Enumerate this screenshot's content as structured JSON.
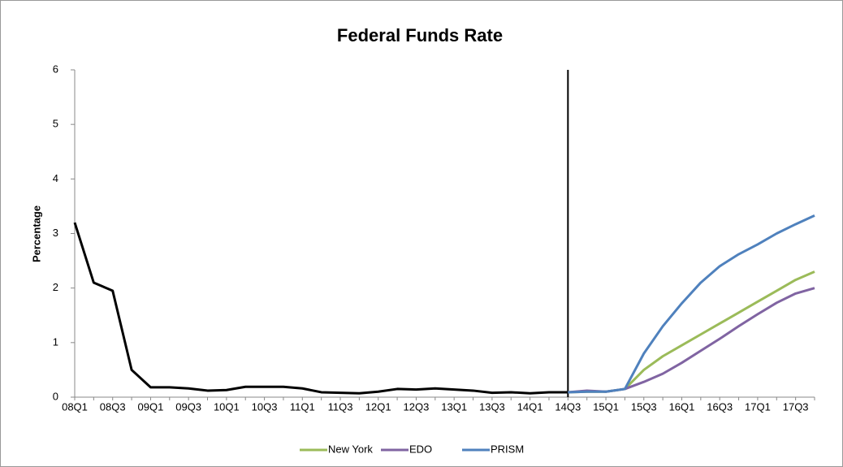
{
  "chart_data": {
    "type": "line",
    "title": "Federal Funds Rate",
    "ylabel": "Percentage",
    "categories": [
      "08Q1",
      null,
      "08Q3",
      null,
      "09Q1",
      null,
      "09Q3",
      null,
      "10Q1",
      null,
      "10Q3",
      null,
      "11Q1",
      null,
      "11Q3",
      null,
      "12Q1",
      null,
      "12Q3",
      null,
      "13Q1",
      null,
      "13Q3",
      null,
      "14Q1",
      null,
      "14Q3",
      null,
      "15Q1",
      null,
      "15Q3",
      null,
      "16Q1",
      null,
      "16Q3",
      null,
      "17Q1",
      null,
      "17Q3",
      null
    ],
    "series": [
      {
        "color": "#000000",
        "values": [
          3.2,
          2.1,
          1.95,
          0.5,
          0.18,
          0.18,
          0.16,
          0.12,
          0.13,
          0.19,
          0.19,
          0.19,
          0.16,
          0.09,
          0.08,
          0.07,
          0.1,
          0.15,
          0.14,
          0.16,
          0.14,
          0.12,
          0.08,
          0.09,
          0.07,
          0.09,
          0.09,
          null,
          null,
          null,
          null,
          null,
          null,
          null,
          null,
          null,
          null,
          null,
          null,
          null
        ]
      },
      {
        "name": "New York",
        "color": "#9bbb59",
        "values": [
          null,
          null,
          null,
          null,
          null,
          null,
          null,
          null,
          null,
          null,
          null,
          null,
          null,
          null,
          null,
          null,
          null,
          null,
          null,
          null,
          null,
          null,
          null,
          null,
          null,
          null,
          0.09,
          0.1,
          0.1,
          0.15,
          0.5,
          0.75,
          0.95,
          1.15,
          1.35,
          1.55,
          1.75,
          1.95,
          2.15,
          2.3
        ]
      },
      {
        "name": "EDO",
        "color": "#8064a2",
        "values": [
          null,
          null,
          null,
          null,
          null,
          null,
          null,
          null,
          null,
          null,
          null,
          null,
          null,
          null,
          null,
          null,
          null,
          null,
          null,
          null,
          null,
          null,
          null,
          null,
          null,
          null,
          0.09,
          0.12,
          0.1,
          0.15,
          0.28,
          0.43,
          0.63,
          0.85,
          1.07,
          1.3,
          1.52,
          1.73,
          1.9,
          2.0
        ]
      },
      {
        "name": "PRISM",
        "color": "#4f81bd",
        "values": [
          null,
          null,
          null,
          null,
          null,
          null,
          null,
          null,
          null,
          null,
          null,
          null,
          null,
          null,
          null,
          null,
          null,
          null,
          null,
          null,
          null,
          null,
          null,
          null,
          null,
          null,
          0.09,
          0.1,
          0.1,
          0.15,
          0.8,
          1.3,
          1.72,
          2.1,
          2.4,
          2.62,
          2.8,
          3.0,
          3.17,
          3.33
        ]
      }
    ],
    "ylim": [
      0,
      6
    ],
    "yticks": [
      0,
      1,
      2,
      3,
      4,
      5,
      6
    ],
    "grid": false,
    "legend": "bottom"
  }
}
